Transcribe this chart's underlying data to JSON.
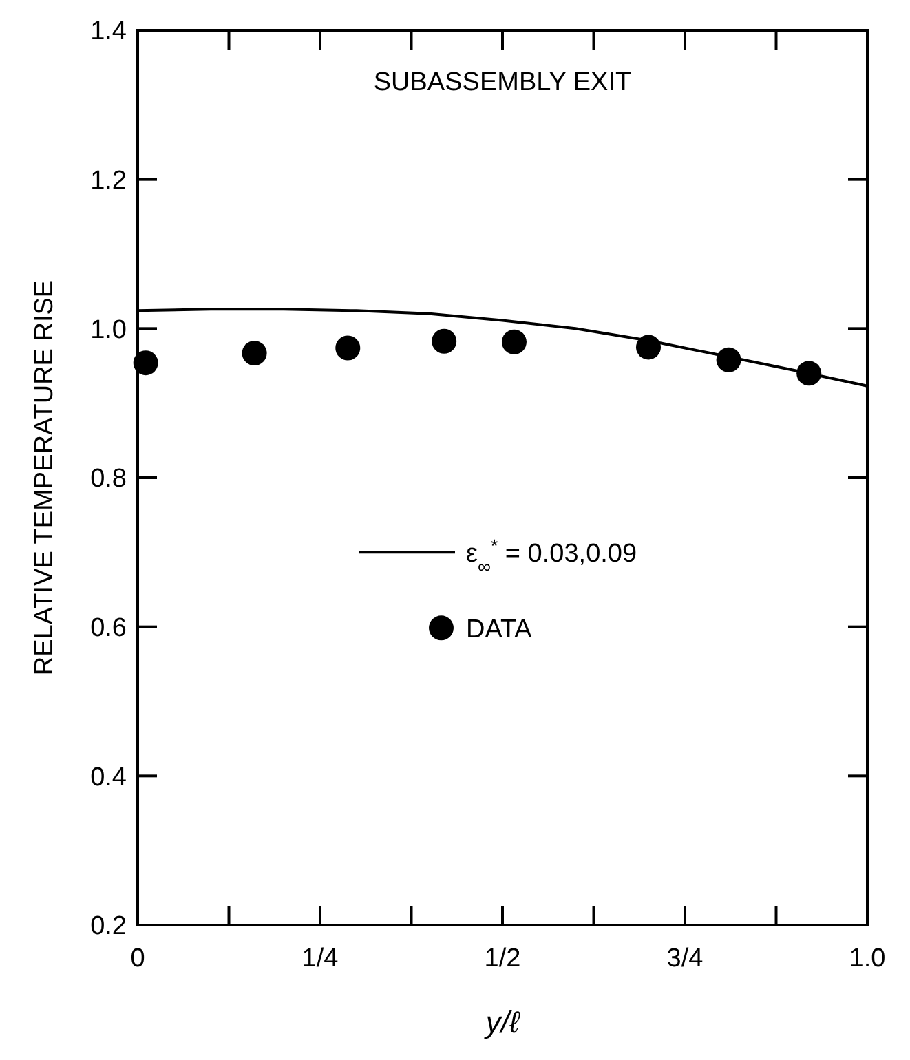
{
  "chart_data": {
    "type": "scatter",
    "title": "SUBASSEMBLY EXIT",
    "xlabel": "y/ℓ",
    "ylabel": "RELATIVE TEMPERATURE RISE",
    "xlim": [
      0,
      1.0
    ],
    "ylim": [
      0.2,
      1.4
    ],
    "xticks": [
      {
        "value": 0,
        "label": "0"
      },
      {
        "value": 0.125,
        "label": null
      },
      {
        "value": 0.25,
        "label": "1/4"
      },
      {
        "value": 0.375,
        "label": null
      },
      {
        "value": 0.5,
        "label": "1/2"
      },
      {
        "value": 0.625,
        "label": null
      },
      {
        "value": 0.75,
        "label": "3/4"
      },
      {
        "value": 0.875,
        "label": null
      },
      {
        "value": 1.0,
        "label": "1.0"
      }
    ],
    "yticks": [
      0.2,
      0.4,
      0.6,
      0.8,
      {
        "value": 1.0,
        "label": "1.0"
      },
      1.2,
      1.4
    ],
    "legend": "center",
    "grid": false,
    "series": [
      {
        "type": "line",
        "name": "ε$_{∞}$$^{*}$ = 0.03,0.09",
        "color": "#000000",
        "line_style": "solid",
        "marker": "none",
        "x": [
          0,
          0.1,
          0.2,
          0.3,
          0.4,
          0.5,
          0.6,
          0.7,
          0.8,
          0.9,
          1.0
        ],
        "values": [
          1.024,
          1.026,
          1.026,
          1.024,
          1.02,
          1.011,
          1.0,
          0.984,
          0.964,
          0.944,
          0.923
        ]
      },
      {
        "name": "DATA",
        "color": "#000000",
        "marker": "circle",
        "x": [
          0.011,
          0.16,
          0.288,
          0.42,
          0.516,
          0.7,
          0.81,
          0.92
        ],
        "values": [
          0.954,
          0.967,
          0.974,
          0.983,
          0.982,
          0.975,
          0.958,
          0.94
        ]
      }
    ]
  }
}
